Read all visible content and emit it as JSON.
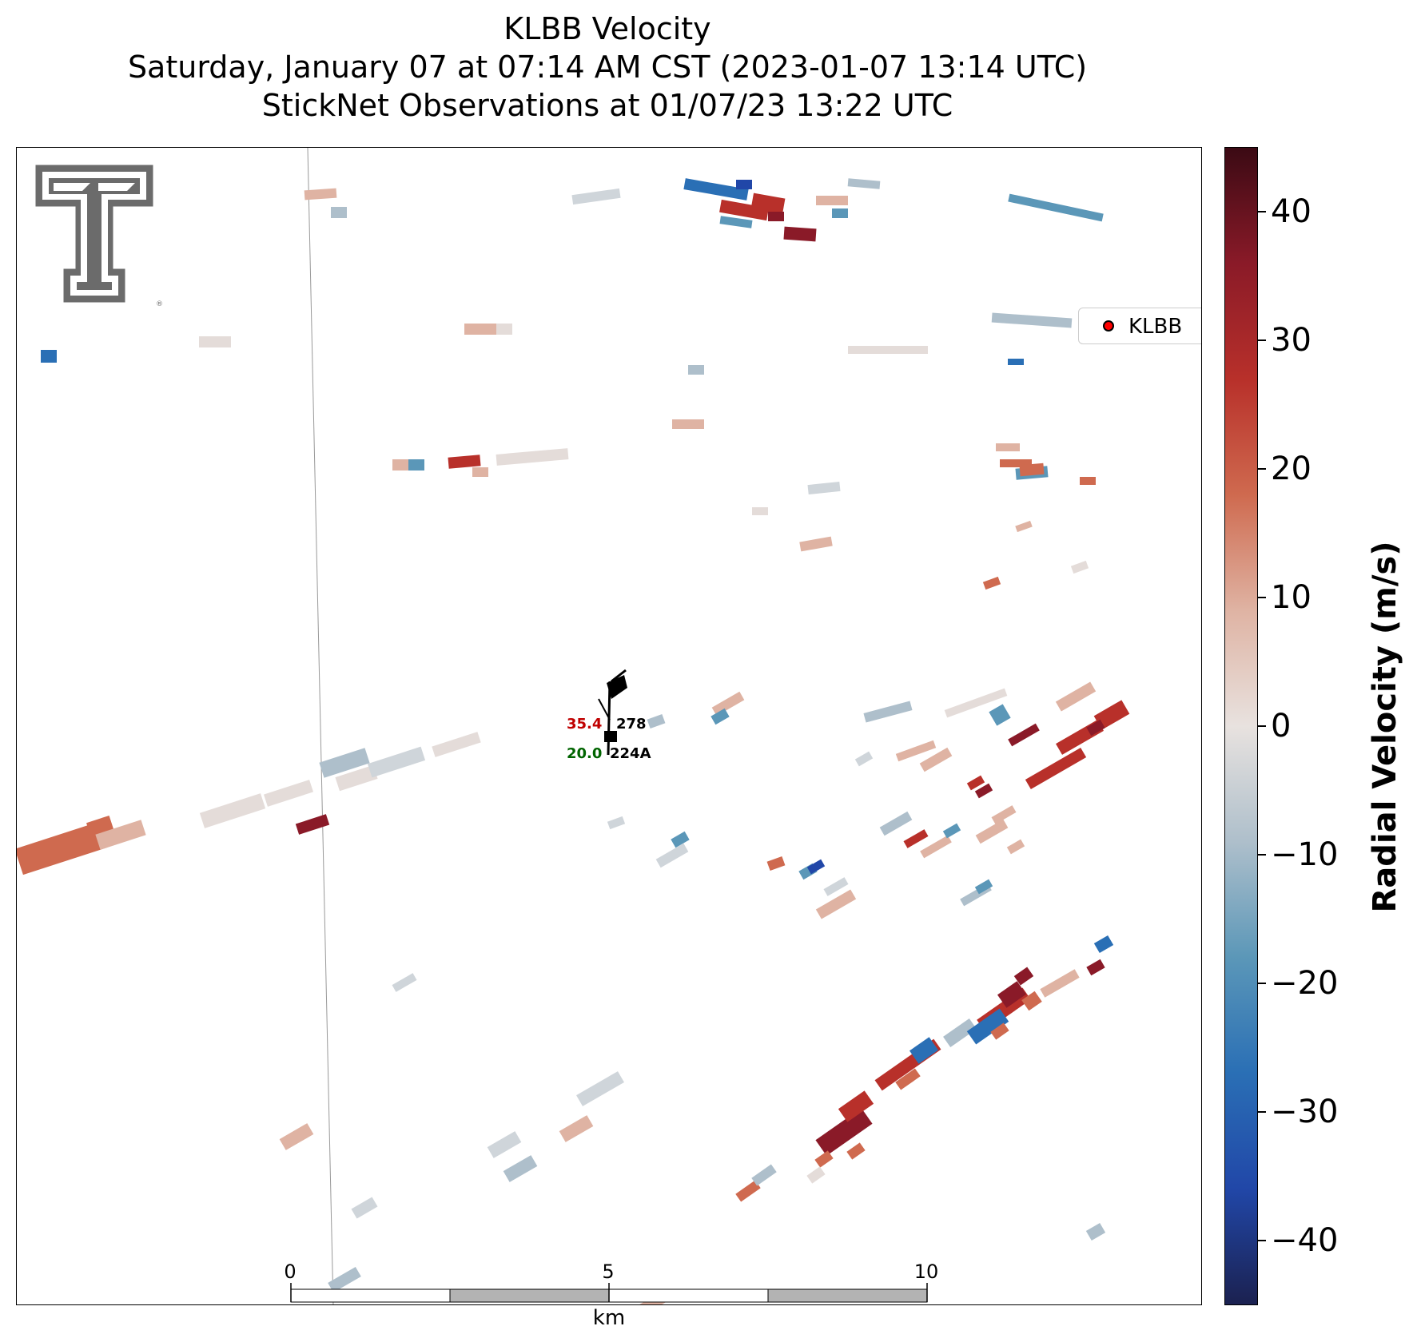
{
  "title": {
    "line1": "KLBB Velocity",
    "line2": "Saturday, January 07 at 07:14 AM CST (2023-01-07 13:14 UTC)",
    "line3": "StickNet Observations at 01/07/23 13:22 UTC"
  },
  "legend": {
    "label": "KLBB",
    "marker_color": "#ff0000"
  },
  "colorbar": {
    "label": "Radial Velocity (m/s)",
    "range": [
      -45,
      45
    ],
    "ticks": [
      "40",
      "30",
      "20",
      "10",
      "0",
      "−10",
      "−20",
      "−30",
      "−40"
    ],
    "colors": [
      "#3b0a14",
      "#8a1a28",
      "#b8302a",
      "#cf6a4f",
      "#dfb3a3",
      "#e8e2df",
      "#aebfcb",
      "#5b97b8",
      "#2a6fb5",
      "#2147a8",
      "#1b2150"
    ]
  },
  "scalebar": {
    "labels": [
      "0",
      "5",
      "10"
    ],
    "unit": "km"
  },
  "station": {
    "temp": "35.4",
    "dewpoint": "20.0",
    "wind_dir": "278",
    "id": "224A"
  },
  "logo": {
    "name": "Texas Tech Double T",
    "color": "#6b6b6b"
  }
}
